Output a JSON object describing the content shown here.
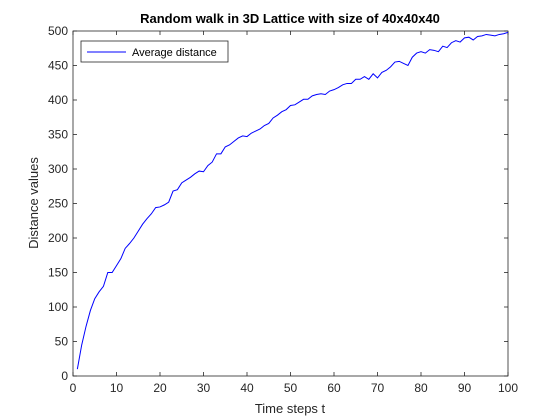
{
  "chart_data": {
    "type": "line",
    "title": "Random walk in 3D Lattice with size of 40x40x40",
    "xlabel": "Time steps t",
    "ylabel": "Distance values",
    "xlim": [
      0,
      100
    ],
    "ylim": [
      0,
      500
    ],
    "xticks": [
      0,
      10,
      20,
      30,
      40,
      50,
      60,
      70,
      80,
      90,
      100
    ],
    "yticks": [
      0,
      50,
      100,
      150,
      200,
      250,
      300,
      350,
      400,
      450,
      500
    ],
    "grid": false,
    "legend_position": "top-left",
    "series": [
      {
        "name": "Average distance",
        "color": "#0000ff",
        "x": [
          1,
          2,
          3,
          4,
          5,
          6,
          7,
          8,
          9,
          10,
          11,
          12,
          13,
          14,
          15,
          16,
          17,
          18,
          19,
          20,
          21,
          22,
          23,
          24,
          25,
          26,
          27,
          28,
          29,
          30,
          31,
          32,
          33,
          34,
          35,
          36,
          37,
          38,
          39,
          40,
          41,
          42,
          43,
          44,
          45,
          46,
          47,
          48,
          49,
          50,
          51,
          52,
          53,
          54,
          55,
          56,
          57,
          58,
          59,
          60,
          61,
          62,
          63,
          64,
          65,
          66,
          67,
          68,
          69,
          70,
          71,
          72,
          73,
          74,
          75,
          76,
          77,
          78,
          79,
          80,
          81,
          82,
          83,
          84,
          85,
          86,
          87,
          88,
          89,
          90,
          91,
          92,
          93,
          94,
          95,
          96,
          97,
          98,
          99,
          100
        ],
        "y": [
          10,
          45,
          72,
          95,
          112,
          122,
          130,
          150,
          150,
          160,
          170,
          185,
          192,
          200,
          210,
          220,
          228,
          235,
          244,
          245,
          248,
          252,
          268,
          270,
          280,
          284,
          288,
          293,
          297,
          296,
          305,
          310,
          322,
          322,
          332,
          335,
          340,
          345,
          348,
          347,
          352,
          355,
          358,
          363,
          366,
          374,
          378,
          383,
          386,
          392,
          393,
          397,
          401,
          401,
          406,
          408,
          409,
          408,
          413,
          415,
          418,
          422,
          424,
          424,
          430,
          430,
          434,
          430,
          438,
          432,
          440,
          443,
          448,
          455,
          456,
          453,
          450,
          462,
          468,
          470,
          468,
          473,
          472,
          470,
          478,
          476,
          483,
          486,
          484,
          490,
          491,
          487,
          492,
          493,
          495,
          494,
          493,
          495,
          496,
          498
        ]
      }
    ]
  }
}
